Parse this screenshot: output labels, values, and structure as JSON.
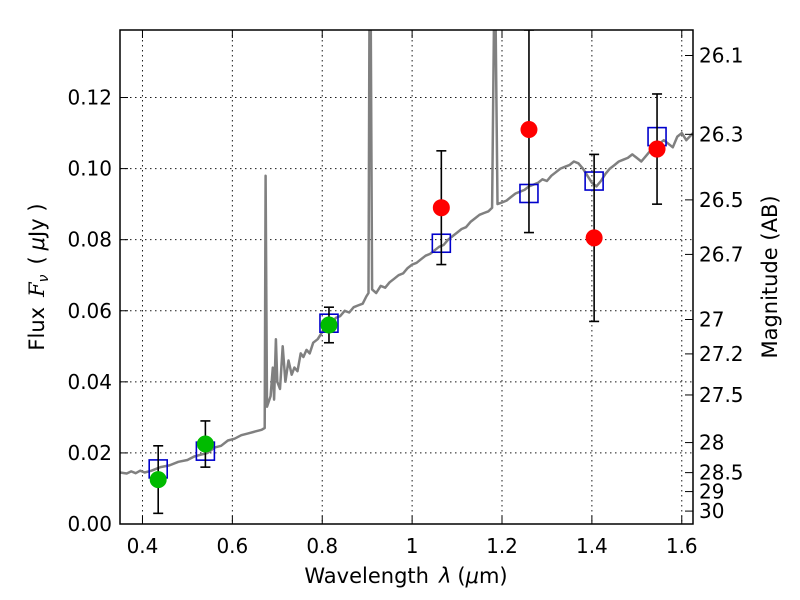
{
  "chart_data": {
    "type": "scatter",
    "xlabel": "Wavelength",
    "xlabel_symbol": "λ",
    "xlabel_unit_prefix": "(",
    "xlabel_unit_mu": "μ",
    "xlabel_unit_suffix": "m)",
    "ylabel_text": "Flux",
    "ylabel_symbol_main": "F",
    "ylabel_symbol_sub": "ν",
    "ylabel_unit_open": "(",
    "ylabel_unit_mu": "μ",
    "ylabel_unit_rest": "Jy )",
    "y2label": "Magnitude (AB)",
    "xlim": [
      0.35,
      1.625
    ],
    "ylim": [
      0.0,
      0.139
    ],
    "grid": true,
    "x_ticks": [
      {
        "v": 0.4,
        "label": "0.4"
      },
      {
        "v": 0.6,
        "label": "0.6"
      },
      {
        "v": 0.8,
        "label": "0.8"
      },
      {
        "v": 1.0,
        "label": "1"
      },
      {
        "v": 1.2,
        "label": "1.2"
      },
      {
        "v": 1.4,
        "label": "1.4"
      },
      {
        "v": 1.6,
        "label": "1.6"
      }
    ],
    "y_ticks": [
      {
        "v": 0.0,
        "label": "0.00"
      },
      {
        "v": 0.02,
        "label": "0.02"
      },
      {
        "v": 0.04,
        "label": "0.04"
      },
      {
        "v": 0.06,
        "label": "0.06"
      },
      {
        "v": 0.08,
        "label": "0.08"
      },
      {
        "v": 0.1,
        "label": "0.10"
      },
      {
        "v": 0.12,
        "label": "0.12"
      }
    ],
    "y2_ticks": [
      {
        "mag": 26.1,
        "label": "26.1"
      },
      {
        "mag": 26.3,
        "label": "26.3"
      },
      {
        "mag": 26.5,
        "label": "26.5"
      },
      {
        "mag": 26.7,
        "label": "26.7"
      },
      {
        "mag": 27.0,
        "label": "27"
      },
      {
        "mag": 27.2,
        "label": "27.2"
      },
      {
        "mag": 27.5,
        "label": "27.5"
      },
      {
        "mag": 28.0,
        "label": "28"
      },
      {
        "mag": 28.5,
        "label": "28.5"
      },
      {
        "mag": 29.0,
        "label": "29"
      },
      {
        "mag": 30.0,
        "label": "30"
      }
    ],
    "model_spectrum": {
      "color": "#808080",
      "points": [
        [
          0.35,
          0.0145
        ],
        [
          0.365,
          0.0142
        ],
        [
          0.375,
          0.0148
        ],
        [
          0.385,
          0.0143
        ],
        [
          0.395,
          0.015
        ],
        [
          0.405,
          0.0145
        ],
        [
          0.42,
          0.015
        ],
        [
          0.44,
          0.016
        ],
        [
          0.46,
          0.0165
        ],
        [
          0.48,
          0.0175
        ],
        [
          0.5,
          0.018
        ],
        [
          0.515,
          0.019
        ],
        [
          0.53,
          0.0195
        ],
        [
          0.545,
          0.02
        ],
        [
          0.56,
          0.0215
        ],
        [
          0.575,
          0.022
        ],
        [
          0.59,
          0.0235
        ],
        [
          0.605,
          0.024
        ],
        [
          0.62,
          0.025
        ],
        [
          0.635,
          0.0255
        ],
        [
          0.65,
          0.026
        ],
        [
          0.665,
          0.0265
        ],
        [
          0.672,
          0.027
        ],
        [
          0.674,
          0.098
        ],
        [
          0.677,
          0.033
        ],
        [
          0.685,
          0.036
        ],
        [
          0.69,
          0.044
        ],
        [
          0.693,
          0.035
        ],
        [
          0.697,
          0.052
        ],
        [
          0.7,
          0.04
        ],
        [
          0.706,
          0.038
        ],
        [
          0.712,
          0.05
        ],
        [
          0.718,
          0.04
        ],
        [
          0.725,
          0.046
        ],
        [
          0.732,
          0.042
        ],
        [
          0.738,
          0.044
        ],
        [
          0.745,
          0.043
        ],
        [
          0.752,
          0.048
        ],
        [
          0.758,
          0.047
        ],
        [
          0.765,
          0.049
        ],
        [
          0.772,
          0.048
        ],
        [
          0.78,
          0.051
        ],
        [
          0.79,
          0.052
        ],
        [
          0.8,
          0.054
        ],
        [
          0.81,
          0.0545
        ],
        [
          0.82,
          0.056
        ],
        [
          0.83,
          0.058
        ],
        [
          0.84,
          0.0585
        ],
        [
          0.85,
          0.06
        ],
        [
          0.86,
          0.0595
        ],
        [
          0.87,
          0.061
        ],
        [
          0.88,
          0.0615
        ],
        [
          0.89,
          0.062
        ],
        [
          0.898,
          0.064
        ],
        [
          0.903,
          0.065
        ],
        [
          0.905,
          0.139
        ],
        [
          0.908,
          0.139
        ],
        [
          0.911,
          0.066
        ],
        [
          0.92,
          0.065
        ],
        [
          0.93,
          0.067
        ],
        [
          0.94,
          0.0665
        ],
        [
          0.95,
          0.068
        ],
        [
          0.96,
          0.069
        ],
        [
          0.97,
          0.07
        ],
        [
          0.98,
          0.0705
        ],
        [
          0.99,
          0.072
        ],
        [
          1.0,
          0.073
        ],
        [
          1.01,
          0.0735
        ],
        [
          1.02,
          0.0745
        ],
        [
          1.03,
          0.0755
        ],
        [
          1.04,
          0.076
        ],
        [
          1.05,
          0.077
        ],
        [
          1.06,
          0.078
        ],
        [
          1.07,
          0.0785
        ],
        [
          1.08,
          0.08
        ],
        [
          1.09,
          0.081
        ],
        [
          1.1,
          0.082
        ],
        [
          1.11,
          0.083
        ],
        [
          1.12,
          0.0835
        ],
        [
          1.13,
          0.085
        ],
        [
          1.14,
          0.086
        ],
        [
          1.15,
          0.087
        ],
        [
          1.16,
          0.0875
        ],
        [
          1.17,
          0.088
        ],
        [
          1.178,
          0.089
        ],
        [
          1.182,
          0.139
        ],
        [
          1.186,
          0.139
        ],
        [
          1.19,
          0.09
        ],
        [
          1.2,
          0.0905
        ],
        [
          1.21,
          0.091
        ],
        [
          1.22,
          0.092
        ],
        [
          1.23,
          0.093
        ],
        [
          1.24,
          0.0935
        ],
        [
          1.25,
          0.094
        ],
        [
          1.26,
          0.095
        ],
        [
          1.27,
          0.0955
        ],
        [
          1.28,
          0.096
        ],
        [
          1.29,
          0.097
        ],
        [
          1.3,
          0.0965
        ],
        [
          1.31,
          0.098
        ],
        [
          1.32,
          0.099
        ],
        [
          1.33,
          0.1
        ],
        [
          1.34,
          0.1005
        ],
        [
          1.35,
          0.101
        ],
        [
          1.36,
          0.102
        ],
        [
          1.37,
          0.1015
        ],
        [
          1.38,
          0.1
        ],
        [
          1.39,
          0.098
        ],
        [
          1.4,
          0.096
        ],
        [
          1.41,
          0.095
        ],
        [
          1.42,
          0.0965
        ],
        [
          1.43,
          0.0985
        ],
        [
          1.44,
          0.1
        ],
        [
          1.45,
          0.101
        ],
        [
          1.46,
          0.102
        ],
        [
          1.47,
          0.1025
        ],
        [
          1.48,
          0.103
        ],
        [
          1.49,
          0.104
        ],
        [
          1.5,
          0.103
        ],
        [
          1.51,
          0.102
        ],
        [
          1.52,
          0.1035
        ],
        [
          1.53,
          0.105
        ],
        [
          1.54,
          0.106
        ],
        [
          1.55,
          0.107
        ],
        [
          1.56,
          0.108
        ],
        [
          1.57,
          0.107
        ],
        [
          1.58,
          0.106
        ],
        [
          1.59,
          0.109
        ],
        [
          1.6,
          0.11
        ],
        [
          1.61,
          0.108
        ],
        [
          1.625,
          0.11
        ]
      ]
    },
    "model_bandpass": {
      "color": "#0000cc",
      "x": [
        0.435,
        0.54,
        0.815,
        1.065,
        1.26,
        1.405,
        1.545
      ],
      "y": [
        0.0155,
        0.0205,
        0.0565,
        0.079,
        0.093,
        0.0965,
        0.109
      ]
    },
    "observed_green": {
      "color": "#00bb00",
      "points": [
        {
          "x": 0.435,
          "y": 0.0125,
          "lo": 0.003,
          "hi": 0.022
        },
        {
          "x": 0.54,
          "y": 0.0225,
          "lo": 0.016,
          "hi": 0.029
        },
        {
          "x": 0.815,
          "y": 0.056,
          "lo": 0.051,
          "hi": 0.061
        }
      ]
    },
    "observed_red": {
      "color": "#ff0000",
      "points": [
        {
          "x": 1.065,
          "y": 0.089,
          "lo": 0.073,
          "hi": 0.105
        },
        {
          "x": 1.26,
          "y": 0.111,
          "lo": 0.082,
          "hi": 0.139
        },
        {
          "x": 1.405,
          "y": 0.0805,
          "lo": 0.057,
          "hi": 0.104
        },
        {
          "x": 1.545,
          "y": 0.1055,
          "lo": 0.09,
          "hi": 0.121
        }
      ]
    }
  }
}
